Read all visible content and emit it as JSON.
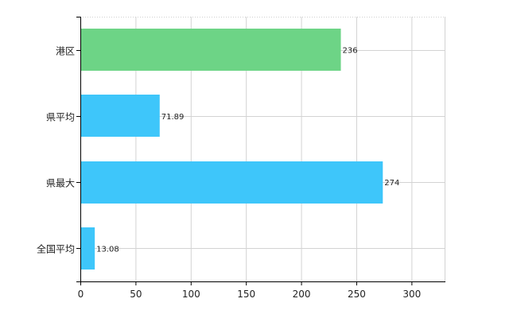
{
  "chart_data": {
    "type": "bar",
    "orientation": "horizontal",
    "categories": [
      "港区",
      "県平均",
      "県最大",
      "全国平均"
    ],
    "values": [
      236,
      71.89,
      274,
      13.08
    ],
    "value_labels": [
      "236",
      "71.89",
      "274",
      "13.08"
    ],
    "bar_colors": [
      "#6dd486",
      "#3ec6fa",
      "#3ec6fa",
      "#3ec6fa"
    ],
    "xlim": [
      0,
      330
    ],
    "xticks": [
      0,
      50,
      100,
      150,
      200,
      250,
      300
    ],
    "xtick_labels": [
      "0",
      "50",
      "100",
      "150",
      "200",
      "250",
      "300"
    ],
    "grid": true
  }
}
